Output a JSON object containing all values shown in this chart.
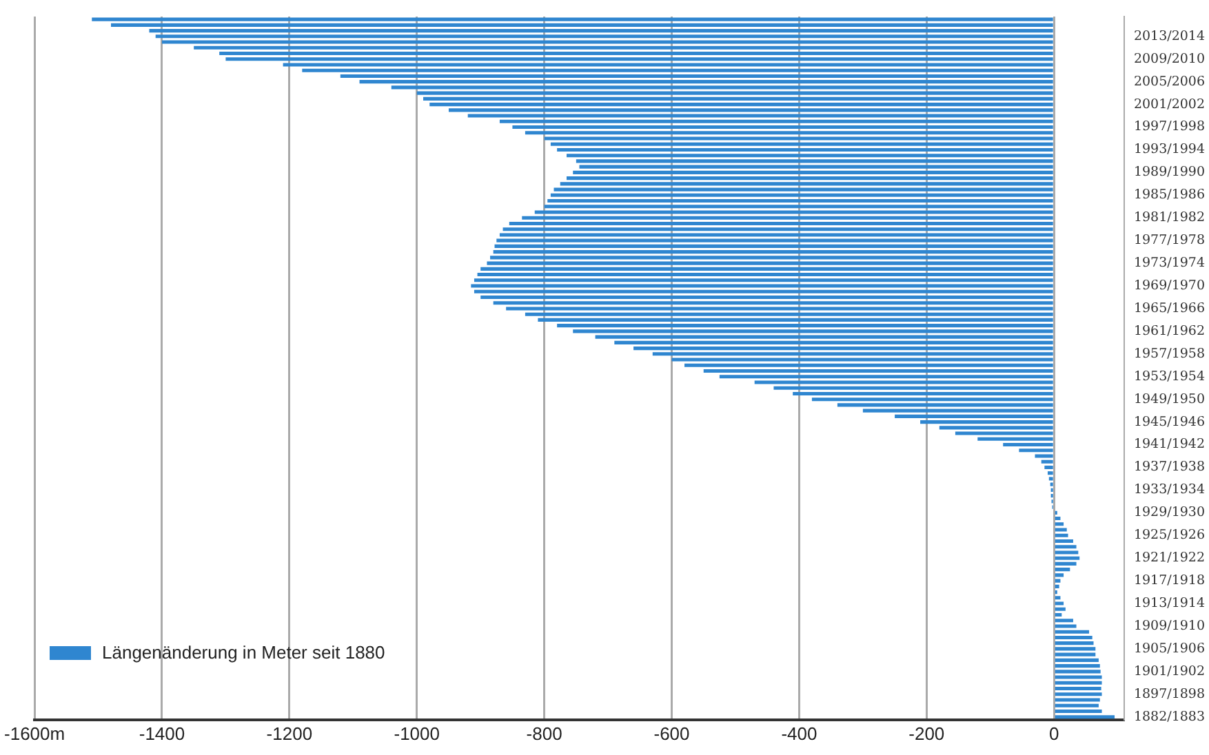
{
  "chart_data": {
    "type": "bar",
    "orientation": "horizontal",
    "categories": [
      null,
      null,
      null,
      "2013/2014",
      null,
      null,
      null,
      "2009/2010",
      null,
      null,
      null,
      "2005/2006",
      null,
      null,
      null,
      "2001/2002",
      null,
      null,
      null,
      "1997/1998",
      null,
      null,
      null,
      "1993/1994",
      null,
      null,
      null,
      "1989/1990",
      null,
      null,
      null,
      "1985/1986",
      null,
      null,
      null,
      "1981/1982",
      null,
      null,
      null,
      "1977/1978",
      null,
      null,
      null,
      "1973/1974",
      null,
      null,
      null,
      "1969/1970",
      null,
      null,
      null,
      "1965/1966",
      null,
      null,
      null,
      "1961/1962",
      null,
      null,
      null,
      "1957/1958",
      null,
      null,
      null,
      "1953/1954",
      null,
      null,
      null,
      "1949/1950",
      null,
      null,
      null,
      "1945/1946",
      null,
      null,
      null,
      "1941/1942",
      null,
      null,
      null,
      "1937/1938",
      null,
      null,
      null,
      "1933/1934",
      null,
      null,
      null,
      "1929/1930",
      null,
      null,
      null,
      "1925/1926",
      null,
      null,
      null,
      "1921/1922",
      null,
      null,
      null,
      "1917/1918",
      null,
      null,
      null,
      "1913/1914",
      null,
      null,
      null,
      "1909/1910",
      null,
      null,
      null,
      "1905/1906",
      null,
      null,
      null,
      "1901/1902",
      null,
      null,
      null,
      "1897/1898",
      null,
      null,
      null,
      "1882/1883"
    ],
    "series": [
      {
        "name": "Längenänderung in Meter seit 1880",
        "color": "#2f86d0",
        "values": [
          -1510,
          -1480,
          -1420,
          -1410,
          -1400,
          -1350,
          -1310,
          -1300,
          -1210,
          -1180,
          -1120,
          -1090,
          -1040,
          -1000,
          -990,
          -980,
          -950,
          -920,
          -870,
          -850,
          -830,
          -800,
          -790,
          -780,
          -765,
          -750,
          -745,
          -755,
          -765,
          -775,
          -785,
          -790,
          -795,
          -800,
          -815,
          -835,
          -855,
          -865,
          -870,
          -875,
          -878,
          -880,
          -885,
          -890,
          -900,
          -905,
          -910,
          -915,
          -910,
          -900,
          -880,
          -860,
          -830,
          -810,
          -780,
          -755,
          -720,
          -690,
          -660,
          -630,
          -600,
          -580,
          -550,
          -525,
          -470,
          -440,
          -410,
          -380,
          -340,
          -300,
          -250,
          -210,
          -180,
          -155,
          -120,
          -80,
          -55,
          -30,
          -20,
          -15,
          -10,
          -8,
          -6,
          -5,
          -5,
          -4,
          -3,
          5,
          10,
          15,
          20,
          22,
          30,
          35,
          38,
          40,
          35,
          25,
          15,
          10,
          8,
          5,
          10,
          15,
          18,
          12,
          30,
          35,
          55,
          60,
          62,
          65,
          65,
          70,
          72,
          73,
          75,
          75,
          74,
          75,
          72,
          70,
          75,
          95
        ]
      }
    ],
    "xlim": [
      -1600,
      110
    ],
    "xticks": [
      {
        "value": -1600,
        "label": "-1600m"
      },
      -1400,
      -1200,
      -1000,
      -800,
      -600,
      -400,
      -200,
      0
    ],
    "grid": "x",
    "legend": "bottom left"
  }
}
